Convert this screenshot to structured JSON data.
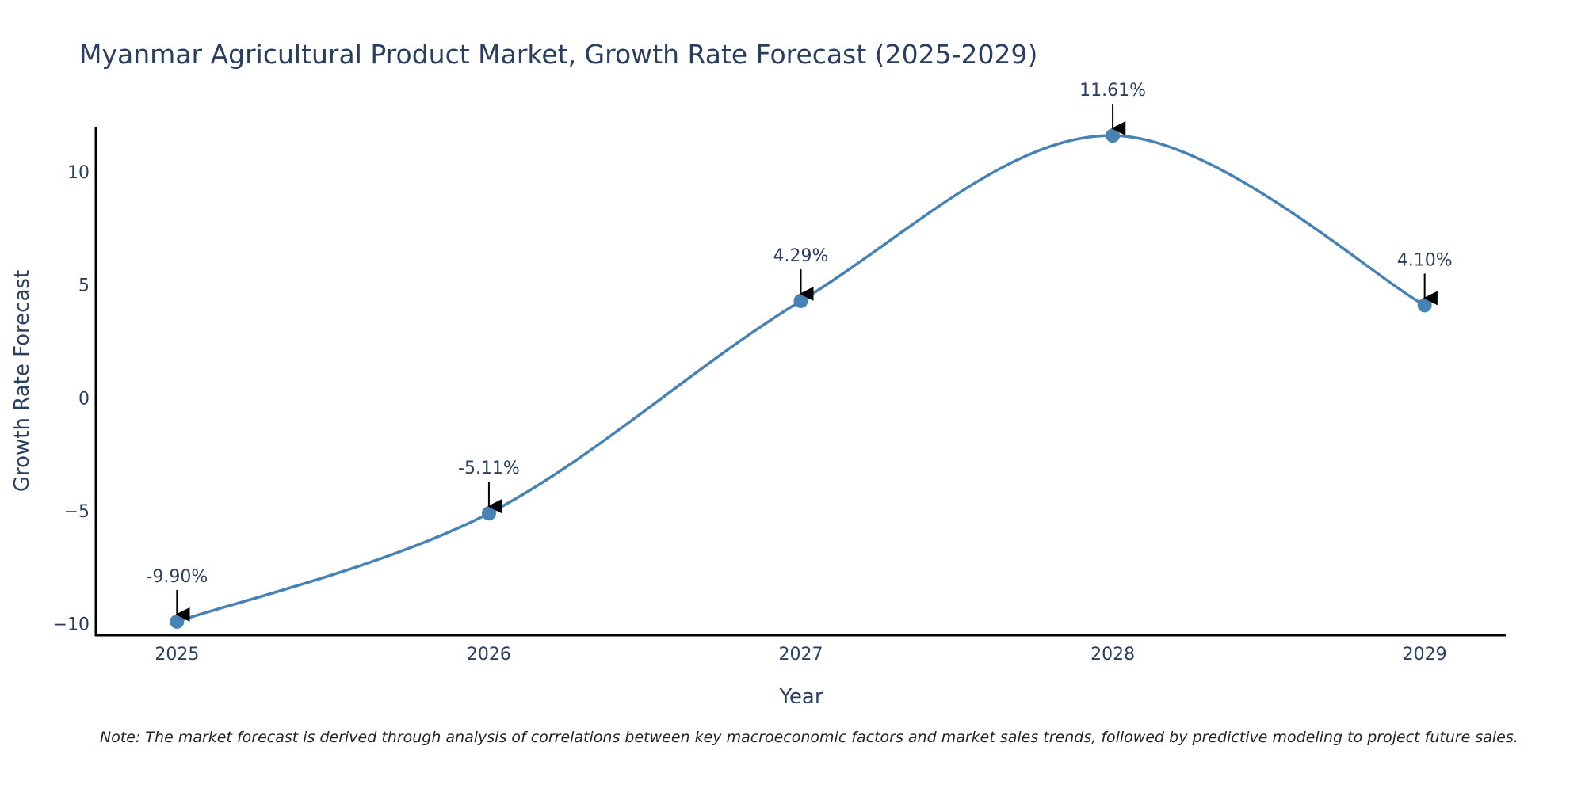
{
  "chart_data": {
    "type": "line",
    "title": "Myanmar Agricultural Product Market, Growth Rate Forecast (2025-2029)",
    "xlabel": "Year",
    "ylabel": "Growth Rate Forecast",
    "x": [
      "2025",
      "2026",
      "2027",
      "2028",
      "2029"
    ],
    "values": [
      -9.9,
      -5.11,
      4.29,
      11.61,
      4.1
    ],
    "labels": [
      "-9.90%",
      "-5.11%",
      "4.29%",
      "11.61%",
      "4.10%"
    ],
    "yticks": [
      10,
      5,
      0,
      -5,
      -10
    ],
    "ytick_labels": [
      "10",
      "5",
      "0",
      "−5",
      "−10"
    ],
    "ylim": [
      -10.5,
      12.0
    ],
    "xlim": [
      -0.26,
      4.26
    ],
    "grid": false,
    "line_shape": "spline",
    "line_color": "#4682b4",
    "marker_color": "#4682b4",
    "arrow_color": "#000000",
    "note": "Note: The market forecast is derived through analysis of correlations between key macroeconomic factors and market sales trends, followed by predictive modeling to project future sales."
  }
}
